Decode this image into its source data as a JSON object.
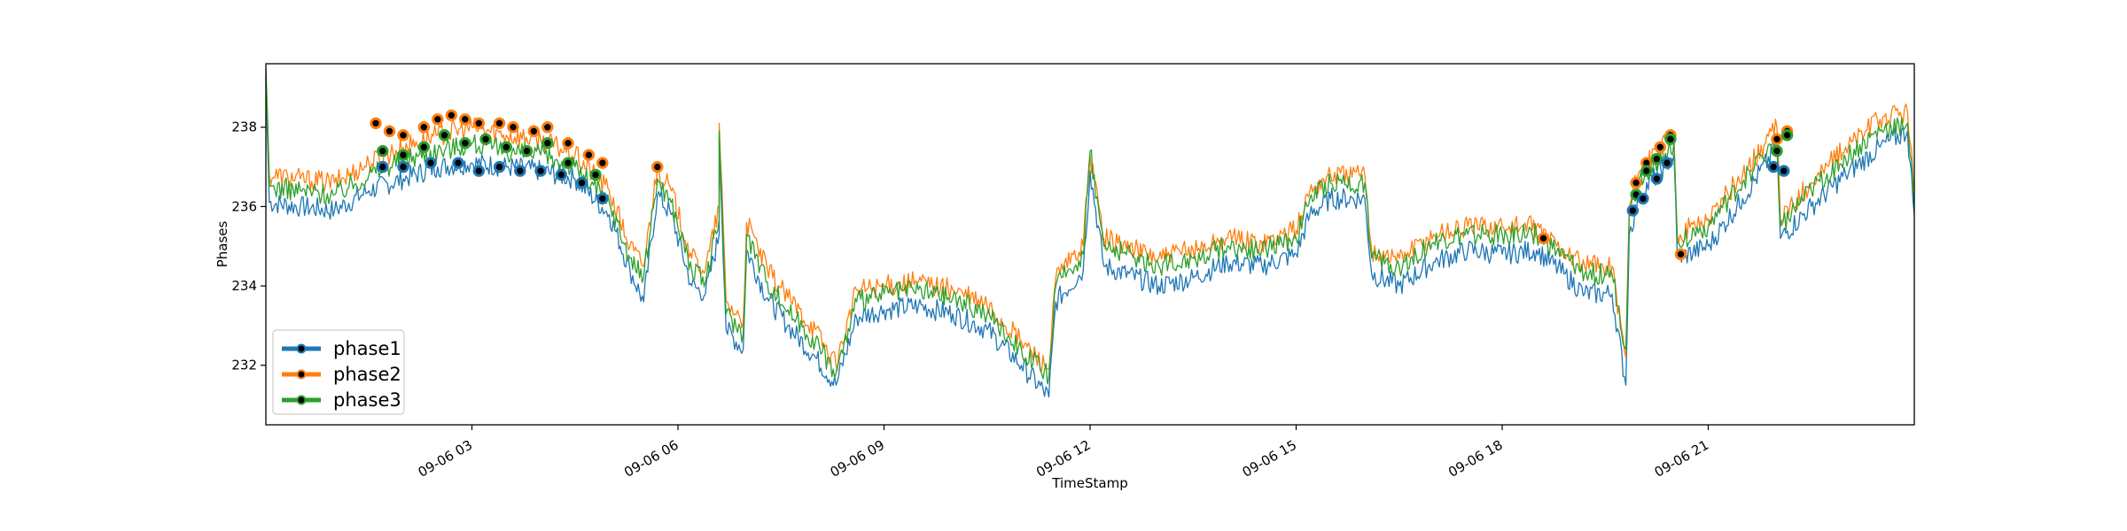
{
  "chart_data": {
    "type": "line",
    "xlabel": "TimeStamp",
    "ylabel": "Phases",
    "xlim": [
      0,
      24
    ],
    "ylim": [
      230.5,
      239.6
    ],
    "grid": false,
    "legend_position": "lower-left",
    "x_ticks": [
      {
        "value": 3,
        "label": "09-06 03"
      },
      {
        "value": 6,
        "label": "09-06 06"
      },
      {
        "value": 9,
        "label": "09-06 09"
      },
      {
        "value": 12,
        "label": "09-06 12"
      },
      {
        "value": 15,
        "label": "09-06 15"
      },
      {
        "value": 18,
        "label": "09-06 18"
      },
      {
        "value": 21,
        "label": "09-06 21"
      }
    ],
    "y_ticks": [
      {
        "value": 232,
        "label": "232"
      },
      {
        "value": 234,
        "label": "234"
      },
      {
        "value": 236,
        "label": "236"
      },
      {
        "value": 238,
        "label": "238"
      }
    ],
    "series": [
      {
        "name": "phase1",
        "color": "#1f77b4",
        "points": [
          [
            0.0,
            239.2
          ],
          [
            0.05,
            236.1
          ],
          [
            0.5,
            236.0
          ],
          [
            1.0,
            235.9
          ],
          [
            1.5,
            236.4
          ],
          [
            2.0,
            236.7
          ],
          [
            2.5,
            237.0
          ],
          [
            3.0,
            237.1
          ],
          [
            3.5,
            237.0
          ],
          [
            4.0,
            236.9
          ],
          [
            4.5,
            236.7
          ],
          [
            5.0,
            235.8
          ],
          [
            5.3,
            234.4
          ],
          [
            5.5,
            233.6
          ],
          [
            5.7,
            236.3
          ],
          [
            5.9,
            235.8
          ],
          [
            6.2,
            234.0
          ],
          [
            6.4,
            233.8
          ],
          [
            6.6,
            235.3
          ],
          [
            6.6,
            237.8
          ],
          [
            6.7,
            232.9
          ],
          [
            6.95,
            232.4
          ],
          [
            7.0,
            234.9
          ],
          [
            7.3,
            233.7
          ],
          [
            7.6,
            233.0
          ],
          [
            8.0,
            232.2
          ],
          [
            8.3,
            231.5
          ],
          [
            8.6,
            233.2
          ],
          [
            9.0,
            233.4
          ],
          [
            9.5,
            233.5
          ],
          [
            10.0,
            233.3
          ],
          [
            10.5,
            232.9
          ],
          [
            11.0,
            232.0
          ],
          [
            11.4,
            231.2
          ],
          [
            11.5,
            233.6
          ],
          [
            11.9,
            234.4
          ],
          [
            12.0,
            236.9
          ],
          [
            12.2,
            234.5
          ],
          [
            13.0,
            234.0
          ],
          [
            13.5,
            234.2
          ],
          [
            14.0,
            234.6
          ],
          [
            14.5,
            234.5
          ],
          [
            15.0,
            234.8
          ],
          [
            15.2,
            235.8
          ],
          [
            15.5,
            236.2
          ],
          [
            16.0,
            236.2
          ],
          [
            16.1,
            234.3
          ],
          [
            16.5,
            234.0
          ],
          [
            17.0,
            234.6
          ],
          [
            17.5,
            234.9
          ],
          [
            18.0,
            234.8
          ],
          [
            18.5,
            234.9
          ],
          [
            18.9,
            234.3
          ],
          [
            19.2,
            233.8
          ],
          [
            19.6,
            233.8
          ],
          [
            19.8,
            231.5
          ],
          [
            19.85,
            235.3
          ],
          [
            20.0,
            236.3
          ],
          [
            20.5,
            237.3
          ],
          [
            20.55,
            234.7
          ],
          [
            21.0,
            235.0
          ],
          [
            21.5,
            236.2
          ],
          [
            22.0,
            237.5
          ],
          [
            22.05,
            235.2
          ],
          [
            22.5,
            236.0
          ],
          [
            23.0,
            236.8
          ],
          [
            23.5,
            237.5
          ],
          [
            23.9,
            237.9
          ],
          [
            24.0,
            235.8
          ]
        ]
      },
      {
        "name": "phase2",
        "color": "#ff7f0e",
        "points": [
          [
            0.0,
            239.3
          ],
          [
            0.05,
            236.8
          ],
          [
            0.5,
            236.7
          ],
          [
            1.0,
            236.6
          ],
          [
            1.5,
            237.1
          ],
          [
            2.0,
            237.5
          ],
          [
            2.5,
            237.8
          ],
          [
            3.0,
            238.0
          ],
          [
            3.5,
            237.8
          ],
          [
            4.0,
            237.7
          ],
          [
            4.5,
            237.3
          ],
          [
            5.0,
            236.4
          ],
          [
            5.3,
            235.0
          ],
          [
            5.5,
            234.5
          ],
          [
            5.7,
            237.0
          ],
          [
            5.9,
            236.4
          ],
          [
            6.2,
            234.7
          ],
          [
            6.4,
            234.4
          ],
          [
            6.6,
            236.0
          ],
          [
            6.6,
            238.1
          ],
          [
            6.7,
            233.6
          ],
          [
            6.95,
            233.1
          ],
          [
            7.0,
            235.6
          ],
          [
            7.3,
            234.4
          ],
          [
            7.6,
            233.7
          ],
          [
            8.0,
            232.9
          ],
          [
            8.3,
            232.0
          ],
          [
            8.6,
            233.9
          ],
          [
            9.0,
            234.0
          ],
          [
            9.5,
            234.1
          ],
          [
            10.0,
            233.9
          ],
          [
            10.5,
            233.5
          ],
          [
            11.0,
            232.6
          ],
          [
            11.4,
            231.9
          ],
          [
            11.5,
            234.2
          ],
          [
            11.9,
            235.0
          ],
          [
            12.0,
            237.3
          ],
          [
            12.2,
            235.2
          ],
          [
            13.0,
            234.7
          ],
          [
            13.5,
            234.9
          ],
          [
            14.0,
            235.2
          ],
          [
            14.5,
            235.1
          ],
          [
            15.0,
            235.4
          ],
          [
            15.2,
            236.4
          ],
          [
            15.5,
            236.8
          ],
          [
            16.0,
            236.8
          ],
          [
            16.1,
            234.9
          ],
          [
            16.5,
            234.7
          ],
          [
            17.0,
            235.3
          ],
          [
            17.5,
            235.5
          ],
          [
            18.0,
            235.5
          ],
          [
            18.5,
            235.5
          ],
          [
            18.9,
            234.9
          ],
          [
            19.2,
            234.5
          ],
          [
            19.6,
            234.5
          ],
          [
            19.8,
            232.2
          ],
          [
            19.85,
            236.0
          ],
          [
            20.0,
            236.9
          ],
          [
            20.5,
            237.8
          ],
          [
            20.55,
            235.3
          ],
          [
            21.0,
            235.7
          ],
          [
            21.5,
            236.8
          ],
          [
            22.0,
            238.0
          ],
          [
            22.05,
            235.7
          ],
          [
            22.5,
            236.6
          ],
          [
            23.0,
            237.5
          ],
          [
            23.5,
            238.2
          ],
          [
            23.9,
            238.4
          ],
          [
            24.0,
            236.4
          ]
        ]
      },
      {
        "name": "phase3",
        "color": "#2ca02c",
        "points": [
          [
            0.0,
            239.5
          ],
          [
            0.05,
            236.5
          ],
          [
            0.5,
            236.4
          ],
          [
            1.0,
            236.3
          ],
          [
            1.5,
            236.8
          ],
          [
            2.0,
            237.2
          ],
          [
            2.5,
            237.4
          ],
          [
            3.0,
            237.6
          ],
          [
            3.5,
            237.4
          ],
          [
            4.0,
            237.3
          ],
          [
            4.5,
            237.0
          ],
          [
            5.0,
            236.1
          ],
          [
            5.3,
            234.7
          ],
          [
            5.5,
            234.2
          ],
          [
            5.7,
            236.7
          ],
          [
            5.9,
            236.1
          ],
          [
            6.2,
            234.4
          ],
          [
            6.4,
            234.1
          ],
          [
            6.6,
            235.7
          ],
          [
            6.6,
            237.9
          ],
          [
            6.7,
            233.3
          ],
          [
            6.95,
            232.8
          ],
          [
            7.0,
            235.3
          ],
          [
            7.3,
            234.1
          ],
          [
            7.6,
            233.4
          ],
          [
            8.0,
            232.6
          ],
          [
            8.3,
            231.8
          ],
          [
            8.6,
            233.6
          ],
          [
            9.0,
            233.8
          ],
          [
            9.5,
            233.9
          ],
          [
            10.0,
            233.7
          ],
          [
            10.5,
            233.3
          ],
          [
            11.0,
            232.4
          ],
          [
            11.4,
            231.7
          ],
          [
            11.5,
            234.0
          ],
          [
            11.9,
            234.8
          ],
          [
            12.0,
            237.4
          ],
          [
            12.2,
            235.0
          ],
          [
            13.0,
            234.5
          ],
          [
            13.5,
            234.7
          ],
          [
            14.0,
            235.0
          ],
          [
            14.5,
            234.9
          ],
          [
            15.0,
            235.2
          ],
          [
            15.2,
            236.2
          ],
          [
            15.5,
            236.6
          ],
          [
            16.0,
            236.6
          ],
          [
            16.1,
            234.7
          ],
          [
            16.5,
            234.5
          ],
          [
            17.0,
            235.1
          ],
          [
            17.5,
            235.3
          ],
          [
            18.0,
            235.3
          ],
          [
            18.5,
            235.3
          ],
          [
            18.9,
            234.7
          ],
          [
            19.2,
            234.3
          ],
          [
            19.6,
            234.3
          ],
          [
            19.8,
            232.4
          ],
          [
            19.85,
            235.8
          ],
          [
            20.0,
            236.7
          ],
          [
            20.5,
            237.6
          ],
          [
            20.55,
            235.1
          ],
          [
            21.0,
            235.5
          ],
          [
            21.5,
            236.6
          ],
          [
            22.0,
            237.8
          ],
          [
            22.05,
            235.5
          ],
          [
            22.5,
            236.4
          ],
          [
            23.0,
            237.2
          ],
          [
            23.5,
            237.9
          ],
          [
            23.9,
            238.1
          ],
          [
            24.0,
            236.1
          ]
        ]
      }
    ],
    "markers": [
      {
        "series": "phase2",
        "points": [
          [
            1.6,
            238.1
          ],
          [
            1.8,
            237.9
          ],
          [
            2.0,
            237.8
          ],
          [
            2.3,
            238.0
          ],
          [
            2.5,
            238.2
          ],
          [
            2.7,
            238.3
          ],
          [
            2.9,
            238.2
          ],
          [
            3.1,
            238.1
          ],
          [
            3.4,
            238.1
          ],
          [
            3.6,
            238.0
          ],
          [
            3.9,
            237.9
          ],
          [
            4.1,
            238.0
          ],
          [
            4.4,
            237.6
          ],
          [
            4.7,
            237.3
          ],
          [
            4.9,
            237.1
          ],
          [
            5.7,
            237.0
          ],
          [
            18.6,
            235.2
          ],
          [
            19.95,
            236.6
          ],
          [
            20.1,
            237.1
          ],
          [
            20.3,
            237.5
          ],
          [
            20.45,
            237.8
          ],
          [
            20.6,
            234.8
          ],
          [
            22.0,
            237.7
          ],
          [
            22.15,
            237.9
          ]
        ]
      },
      {
        "series": "phase3",
        "points": [
          [
            1.7,
            237.4
          ],
          [
            2.0,
            237.3
          ],
          [
            2.3,
            237.5
          ],
          [
            2.6,
            237.8
          ],
          [
            2.9,
            237.6
          ],
          [
            3.2,
            237.7
          ],
          [
            3.5,
            237.5
          ],
          [
            3.8,
            237.4
          ],
          [
            4.1,
            237.6
          ],
          [
            4.4,
            237.1
          ],
          [
            4.8,
            236.8
          ],
          [
            19.95,
            236.3
          ],
          [
            20.1,
            236.9
          ],
          [
            20.25,
            237.2
          ],
          [
            20.45,
            237.7
          ],
          [
            22.0,
            237.4
          ],
          [
            22.15,
            237.8
          ]
        ]
      },
      {
        "series": "phase1",
        "points": [
          [
            1.7,
            237.0
          ],
          [
            2.0,
            237.0
          ],
          [
            2.4,
            237.1
          ],
          [
            2.8,
            237.1
          ],
          [
            3.1,
            236.9
          ],
          [
            3.4,
            237.0
          ],
          [
            3.7,
            236.9
          ],
          [
            4.0,
            236.9
          ],
          [
            4.3,
            236.8
          ],
          [
            4.6,
            236.6
          ],
          [
            4.9,
            236.2
          ],
          [
            19.9,
            235.9
          ],
          [
            20.05,
            236.2
          ],
          [
            20.25,
            236.7
          ],
          [
            20.4,
            237.1
          ],
          [
            21.95,
            237.0
          ],
          [
            22.1,
            236.9
          ]
        ]
      }
    ]
  }
}
